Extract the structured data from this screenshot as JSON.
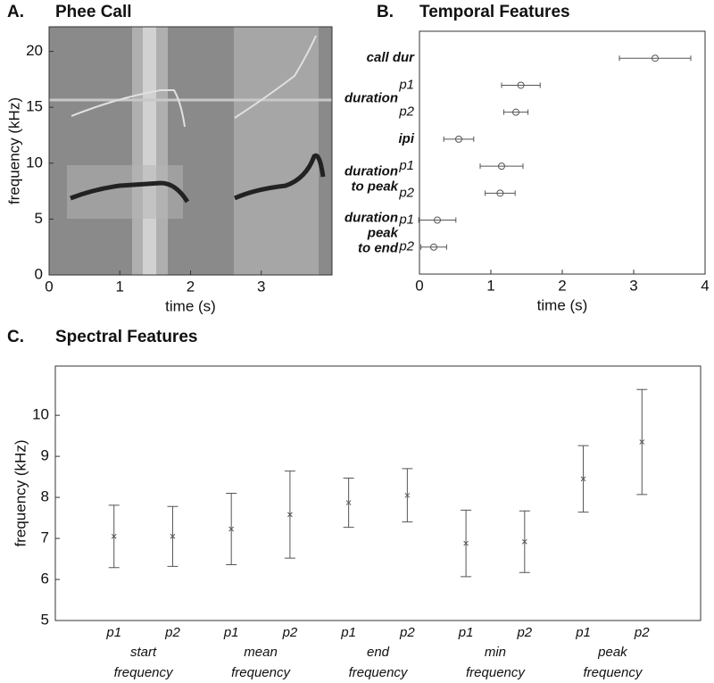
{
  "chart_data": [
    {
      "type": "spectrogram",
      "label": "A.",
      "title": "Phee Call",
      "xlabel": "time (s)",
      "ylabel": "frequency (kHz)",
      "xlim": [
        0,
        4
      ],
      "ylim": [
        0,
        22.2
      ],
      "xticks": [
        0,
        1,
        2,
        3
      ],
      "yticks": [
        0,
        5,
        10,
        15,
        20
      ]
    },
    {
      "type": "errorbar",
      "horizontal": true,
      "marker": "o",
      "color": "#555",
      "label": "B.",
      "title": "Temporal Features",
      "xlabel": "time (s)",
      "xlim": [
        0,
        4
      ],
      "xticks": [
        0,
        1,
        2,
        3,
        4
      ],
      "categories": [
        "call dur",
        "p1",
        "p2",
        "ipi",
        "p1",
        "p2",
        "p1",
        "p2"
      ],
      "groups": [
        [
          "duration"
        ],
        [
          "duration",
          "to peak"
        ],
        [
          "duration",
          "peak",
          "to end"
        ]
      ],
      "values": [
        3.3,
        1.42,
        1.35,
        0.55,
        1.15,
        1.13,
        0.25,
        0.2
      ],
      "errors": [
        0.5,
        0.27,
        0.17,
        0.21,
        0.3,
        0.21,
        0.26,
        0.18
      ]
    },
    {
      "type": "errorbar",
      "horizontal": false,
      "marker": "x",
      "color": "#555",
      "label": "C.",
      "title": "Spectral Features",
      "ylabel": "frequency (kHz)",
      "ylim": [
        5,
        11.2
      ],
      "yticks": [
        5,
        6,
        7,
        8,
        9,
        10
      ],
      "categories": [
        "p1",
        "p2",
        "p1",
        "p2",
        "p1",
        "p2",
        "p1",
        "p2",
        "p1",
        "p2"
      ],
      "groups": [
        [
          "start",
          "frequency"
        ],
        [
          "mean",
          "frequency"
        ],
        [
          "end",
          "frequency"
        ],
        [
          "min",
          "frequency"
        ],
        [
          "peak",
          "frequency"
        ]
      ],
      "values": [
        7.05,
        7.05,
        7.23,
        7.58,
        7.87,
        8.05,
        6.88,
        6.92,
        8.45,
        9.35
      ],
      "errors": [
        0.76,
        0.73,
        0.87,
        1.06,
        0.6,
        0.65,
        0.81,
        0.75,
        0.81,
        1.28
      ]
    }
  ]
}
